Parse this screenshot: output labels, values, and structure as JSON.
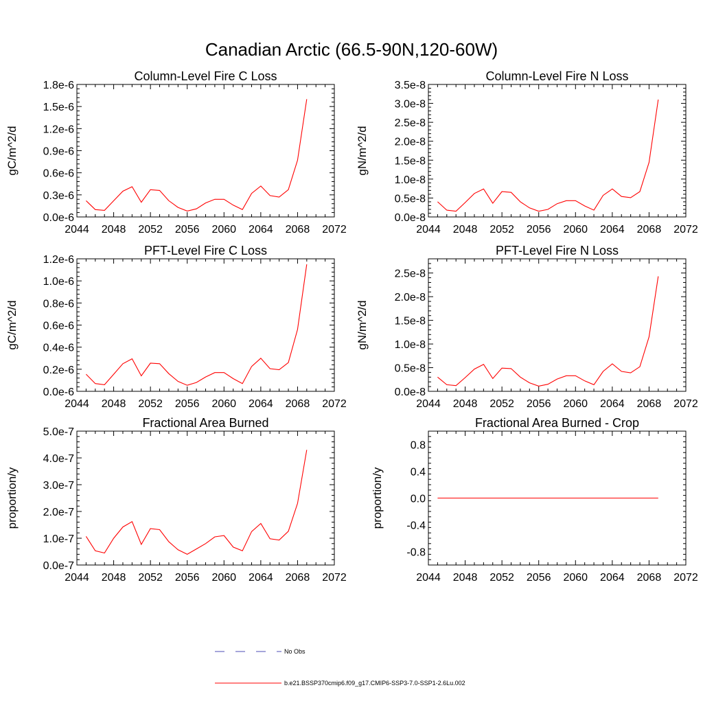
{
  "figure": {
    "title": "Canadian Arctic (66.5-90N,120-60W)",
    "line_color": "#ff0000",
    "obs_color": "#4b4bb4"
  },
  "legend": {
    "obs_label": "No Obs",
    "model_label": "b.e21.BSSP370cmip6.f09_g17.CMIP6-SSP3-7.0-SSP1-2.6Lu.002"
  },
  "chart_data": [
    {
      "type": "line",
      "title": "Column-Level Fire C Loss",
      "ylabel": "gC/m^2/d",
      "xlim": [
        2044,
        2072
      ],
      "ylim": [
        0,
        1.8e-06
      ],
      "xticks": [
        2044,
        2048,
        2052,
        2056,
        2060,
        2064,
        2068,
        2072
      ],
      "yticks": [
        0,
        3e-07,
        6e-07,
        9e-07,
        1.2e-06,
        1.5e-06,
        1.8e-06
      ],
      "ytick_labels": [
        "0.0e-6",
        "0.3e-6",
        "0.6e-6",
        "0.9e-6",
        "1.2e-6",
        "1.5e-6",
        "1.8e-6"
      ],
      "x": [
        2045,
        2046,
        2047,
        2048,
        2049,
        2050,
        2051,
        2052,
        2053,
        2054,
        2055,
        2056,
        2057,
        2058,
        2059,
        2060,
        2061,
        2062,
        2063,
        2064,
        2065,
        2066,
        2067,
        2068,
        2069
      ],
      "series": [
        {
          "values": [
            2.2e-07,
            1e-07,
            9e-08,
            2.2e-07,
            3.5e-07,
            4.1e-07,
            2e-07,
            3.7e-07,
            3.6e-07,
            2.2e-07,
            1.3e-07,
            8e-08,
            1.1e-07,
            1.9e-07,
            2.4e-07,
            2.4e-07,
            1.6e-07,
            1e-07,
            3.2e-07,
            4.2e-07,
            2.9e-07,
            2.7e-07,
            3.7e-07,
            7.7e-07,
            1.6e-06
          ]
        }
      ]
    },
    {
      "type": "line",
      "title": "Column-Level Fire N Loss",
      "ylabel": "gN/m^2/d",
      "xlim": [
        2044,
        2072
      ],
      "ylim": [
        0,
        3.5e-08
      ],
      "xticks": [
        2044,
        2048,
        2052,
        2056,
        2060,
        2064,
        2068,
        2072
      ],
      "yticks": [
        0,
        5e-09,
        1e-08,
        1.5e-08,
        2e-08,
        2.5e-08,
        3e-08,
        3.5e-08
      ],
      "ytick_labels": [
        "0.0e-8",
        "0.5e-8",
        "1.0e-8",
        "1.5e-8",
        "2.0e-8",
        "2.5e-8",
        "3.0e-8",
        "3.5e-8"
      ],
      "x": [
        2045,
        2046,
        2047,
        2048,
        2049,
        2050,
        2051,
        2052,
        2053,
        2054,
        2055,
        2056,
        2057,
        2058,
        2059,
        2060,
        2061,
        2062,
        2063,
        2064,
        2065,
        2066,
        2067,
        2068,
        2069
      ],
      "series": [
        {
          "values": [
            4e-09,
            1.8e-09,
            1.5e-09,
            3.8e-09,
            6.2e-09,
            7.4e-09,
            3.6e-09,
            6.7e-09,
            6.5e-09,
            4e-09,
            2.4e-09,
            1.5e-09,
            2e-09,
            3.5e-09,
            4.3e-09,
            4.3e-09,
            2.9e-09,
            1.8e-09,
            5.7e-09,
            7.4e-09,
            5.4e-09,
            5.1e-09,
            6.7e-09,
            1.44e-08,
            3.1e-08
          ]
        }
      ]
    },
    {
      "type": "line",
      "title": "PFT-Level Fire C Loss",
      "ylabel": "gC/m^2/d",
      "xlim": [
        2044,
        2072
      ],
      "ylim": [
        0,
        1.2e-06
      ],
      "xticks": [
        2044,
        2048,
        2052,
        2056,
        2060,
        2064,
        2068,
        2072
      ],
      "yticks": [
        0,
        2e-07,
        4e-07,
        6e-07,
        8e-07,
        1e-06,
        1.2e-06
      ],
      "ytick_labels": [
        "0.0e-6",
        "0.2e-6",
        "0.4e-6",
        "0.6e-6",
        "0.8e-6",
        "1.0e-6",
        "1.2e-6"
      ],
      "x": [
        2045,
        2046,
        2047,
        2048,
        2049,
        2050,
        2051,
        2052,
        2053,
        2054,
        2055,
        2056,
        2057,
        2058,
        2059,
        2060,
        2061,
        2062,
        2063,
        2064,
        2065,
        2066,
        2067,
        2068,
        2069
      ],
      "series": [
        {
          "values": [
            1.55e-07,
            7e-08,
            6e-08,
            1.55e-07,
            2.5e-07,
            2.95e-07,
            1.4e-07,
            2.55e-07,
            2.5e-07,
            1.6e-07,
            9e-08,
            5.5e-08,
            8e-08,
            1.3e-07,
            1.7e-07,
            1.7e-07,
            1.15e-07,
            7e-08,
            2.25e-07,
            3e-07,
            2.05e-07,
            1.95e-07,
            2.6e-07,
            5.6e-07,
            1.15e-06
          ]
        }
      ]
    },
    {
      "type": "line",
      "title": "PFT-Level Fire N Loss",
      "ylabel": "gN/m^2/d",
      "xlim": [
        2044,
        2072
      ],
      "ylim": [
        0,
        2.8e-08
      ],
      "xticks": [
        2044,
        2048,
        2052,
        2056,
        2060,
        2064,
        2068,
        2072
      ],
      "yticks": [
        0,
        5e-09,
        1e-08,
        1.5e-08,
        2e-08,
        2.5e-08
      ],
      "ytick_labels": [
        "0.0e-8",
        "0.5e-8",
        "1.0e-8",
        "1.5e-8",
        "2.0e-8",
        "2.5e-8"
      ],
      "x": [
        2045,
        2046,
        2047,
        2048,
        2049,
        2050,
        2051,
        2052,
        2053,
        2054,
        2055,
        2056,
        2057,
        2058,
        2059,
        2060,
        2061,
        2062,
        2063,
        2064,
        2065,
        2066,
        2067,
        2068,
        2069
      ],
      "series": [
        {
          "values": [
            3e-09,
            1.4e-09,
            1.2e-09,
            2.9e-09,
            4.7e-09,
            5.7e-09,
            2.7e-09,
            4.9e-09,
            4.8e-09,
            3e-09,
            1.8e-09,
            1.1e-09,
            1.5e-09,
            2.6e-09,
            3.3e-09,
            3.3e-09,
            2.2e-09,
            1.4e-09,
            4.2e-09,
            5.8e-09,
            4.2e-09,
            3.9e-09,
            5.2e-09,
            1.15e-08,
            2.43e-08
          ]
        }
      ]
    },
    {
      "type": "line",
      "title": "Fractional Area Burned",
      "ylabel": "proportion/y",
      "xlim": [
        2044,
        2072
      ],
      "ylim": [
        0,
        5e-07
      ],
      "xticks": [
        2044,
        2048,
        2052,
        2056,
        2060,
        2064,
        2068,
        2072
      ],
      "yticks": [
        0,
        1e-07,
        2e-07,
        3e-07,
        4e-07,
        5e-07
      ],
      "ytick_labels": [
        "0.0e-7",
        "1.0e-7",
        "2.0e-7",
        "3.0e-7",
        "4.0e-7",
        "5.0e-7"
      ],
      "x": [
        2045,
        2046,
        2047,
        2048,
        2049,
        2050,
        2051,
        2052,
        2053,
        2054,
        2055,
        2056,
        2057,
        2058,
        2059,
        2060,
        2061,
        2062,
        2063,
        2064,
        2065,
        2066,
        2067,
        2068,
        2069
      ],
      "series": [
        {
          "values": [
            1.07e-07,
            5.3e-08,
            4.5e-08,
            1e-07,
            1.42e-07,
            1.62e-07,
            7.7e-08,
            1.36e-07,
            1.32e-07,
            8.7e-08,
            5.7e-08,
            4e-08,
            6e-08,
            8e-08,
            1.05e-07,
            1.1e-07,
            6.7e-08,
            5.3e-08,
            1.25e-07,
            1.55e-07,
            9.8e-08,
            9.3e-08,
            1.26e-07,
            2.3e-07,
            4.3e-07
          ]
        }
      ]
    },
    {
      "type": "line",
      "title": "Fractional Area Burned - Crop",
      "ylabel": "proportion/y",
      "xlim": [
        2044,
        2072
      ],
      "ylim": [
        -1.0,
        1.0
      ],
      "xticks": [
        2044,
        2048,
        2052,
        2056,
        2060,
        2064,
        2068,
        2072
      ],
      "yticks": [
        -0.8,
        -0.4,
        0,
        0.4,
        0.8
      ],
      "ytick_labels": [
        "-0.8",
        "-0.4",
        "0.0",
        "0.4",
        "0.8"
      ],
      "x": [
        2045,
        2069
      ],
      "series": [
        {
          "values": [
            0,
            0
          ]
        }
      ]
    }
  ]
}
